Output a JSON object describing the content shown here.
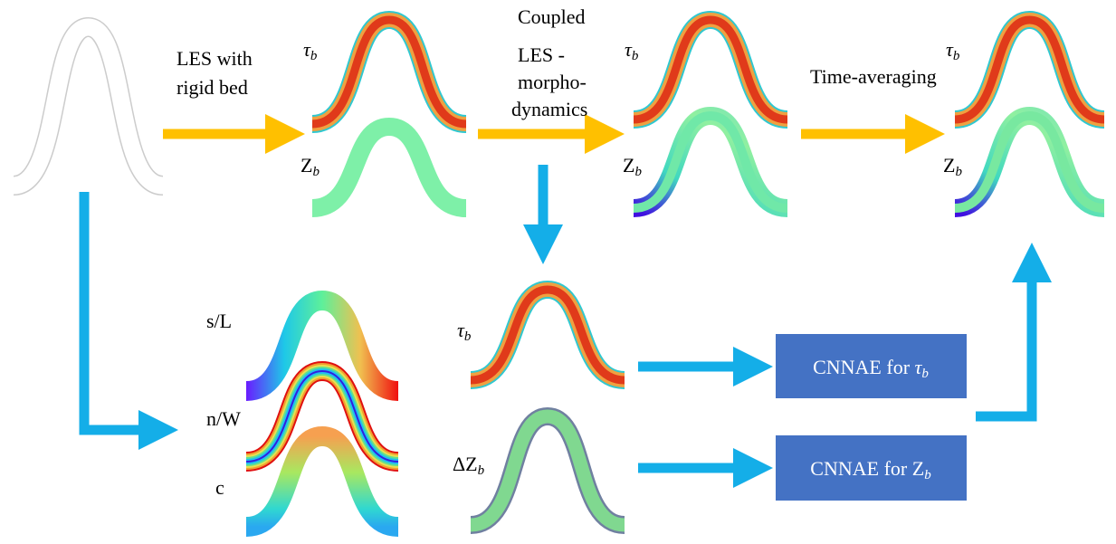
{
  "steps": [
    {
      "lines": [
        "LES with",
        "rigid bed"
      ]
    },
    {
      "lines": [
        "Coupled",
        "LES -",
        "morpho-",
        "dynamics"
      ]
    },
    {
      "lines": [
        "Time-averaging"
      ]
    }
  ],
  "panels": {
    "rigid_tau": {
      "symbol": "τ",
      "sub": "b"
    },
    "rigid_z": {
      "symbol": "Z",
      "sub": "b"
    },
    "coupled_tau": {
      "symbol": "τ",
      "sub": "b"
    },
    "coupled_z": {
      "symbol": "Z",
      "sub": "b"
    },
    "avg_tau": {
      "symbol": "τ",
      "sub": "b"
    },
    "avg_z": {
      "symbol": "Z",
      "sub": "b"
    },
    "snapshot_tau": {
      "symbol": "τ",
      "sub": "b"
    },
    "snapshot_dz": {
      "symbol": "ΔZ",
      "sub": "b"
    },
    "s_l": {
      "symbol": "s/L"
    },
    "n_w": {
      "symbol": "n/W"
    },
    "c": {
      "symbol": "c"
    }
  },
  "boxes": [
    {
      "text": "CNNAE for ",
      "symbol": "τ",
      "sub": "b"
    },
    {
      "text": "CNNAE for ",
      "symbol": "Z",
      "sub": "b"
    }
  ]
}
